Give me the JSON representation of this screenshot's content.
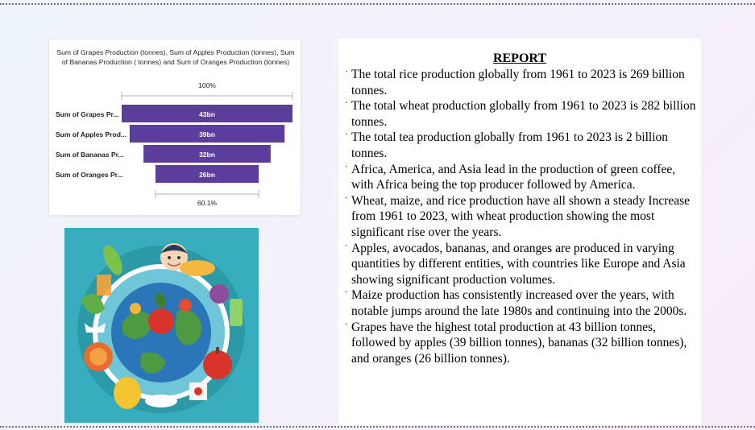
{
  "chart": {
    "title": "Sum of Grapes Production (tonnes), Sum of Apples Production (tonnes), Sum of Bananas Production ( tonnes) and Sum of Oranges Production (tonnes)",
    "top_percent_label": "100%",
    "bottom_percent_label": "60.1%",
    "colors": {
      "bar": "#5b3d9c",
      "label_text": "#ffffff"
    }
  },
  "chart_data": {
    "type": "funnel",
    "categories": [
      "Sum of Grapes Pr...",
      "Sum of Apples Prod...",
      "Sum of Bananas Pr...",
      "Sum of Oranges Pr..."
    ],
    "values": [
      43,
      39,
      32,
      26
    ],
    "value_labels": [
      "43bn",
      "39bn",
      "32bn",
      "26bn"
    ],
    "unit": "bn"
  },
  "image": {
    "icon": "food-globe-illustration"
  },
  "report": {
    "title": "REPORT",
    "items": [
      "The total rice production globally from 1961 to 2023 is 269 billion tonnes.",
      "The total wheat production globally from 1961 to 2023 is 282 billion tonnes.",
      "The total tea production globally from 1961 to 2023 is 2 billion tonnes.",
      "Africa, America, and Asia lead in the production of green coffee, with Africa being the top producer followed by America.",
      "Wheat, maize, and rice production have all shown a steady Increase from 1961 to 2023, with wheat production showing the most significant rise over the years.",
      "Apples, avocados, bananas, and oranges are produced in varying quantities by different entities, with countries like Europe and Asia showing significant production volumes.",
      " Maize production has consistently increased over the years, with notable jumps around the late 1980s and continuing into the 2000s.",
      "Grapes have the highest total production at 43 billion tonnes, followed by apples (39 billion tonnes), bananas (32 billion tonnes), and oranges (26 billion tonnes)."
    ]
  }
}
